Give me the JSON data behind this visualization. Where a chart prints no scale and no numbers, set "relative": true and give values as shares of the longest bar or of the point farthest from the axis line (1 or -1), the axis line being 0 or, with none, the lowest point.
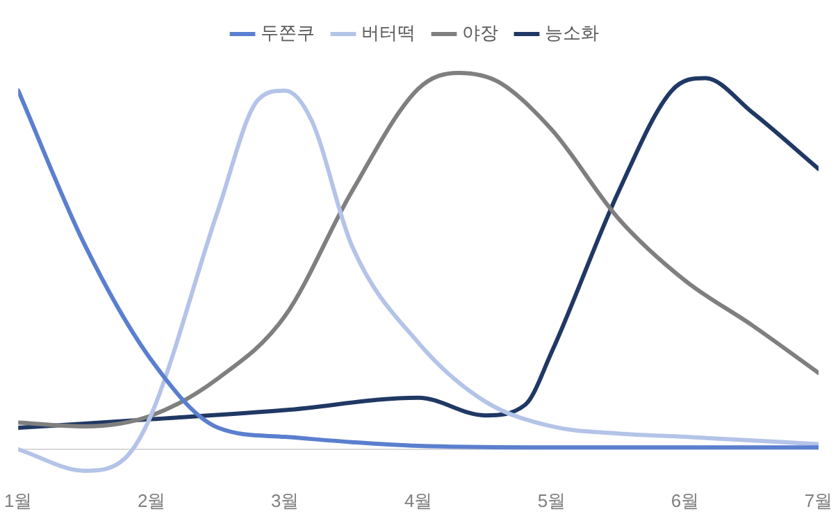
{
  "chart_data": {
    "type": "line",
    "relative": true,
    "xlim": [
      1,
      7
    ],
    "xticks": [
      {
        "value": 1,
        "label": "1월"
      },
      {
        "value": 2,
        "label": "2월"
      },
      {
        "value": 3,
        "label": "3월"
      },
      {
        "value": 4,
        "label": "4월"
      },
      {
        "value": 5,
        "label": "5월"
      },
      {
        "value": 6,
        "label": "6월"
      },
      {
        "value": 7,
        "label": "7월"
      }
    ],
    "legend": "top",
    "grid": false,
    "marker": "none",
    "line_style": "solid",
    "series": [
      {
        "name": "두쫀쿠",
        "color": "#5b7fcf",
        "x": [
          1,
          1.5,
          2,
          2.5,
          3,
          3.5,
          4,
          5,
          6,
          7
        ],
        "values": [
          0.953,
          0.542,
          0.236,
          0.057,
          0.033,
          0.019,
          0.009,
          0.005,
          0.005,
          0.005
        ]
      },
      {
        "name": "버터떡",
        "color": "#b4c3e8",
        "x": [
          1,
          1.5,
          1.8,
          2,
          2.5,
          2.8,
          3,
          3.2,
          3.5,
          4,
          4.5,
          5,
          5.5,
          6,
          7
        ],
        "values": [
          0,
          -0.057,
          -0.024,
          0.094,
          0.637,
          0.929,
          0.953,
          0.873,
          0.542,
          0.283,
          0.127,
          0.061,
          0.042,
          0.033,
          0.014
        ]
      },
      {
        "name": "야장",
        "color": "#7f7f7f",
        "x": [
          1,
          1.5,
          2,
          2.5,
          3,
          3.5,
          4,
          4.3,
          4.6,
          5,
          5.5,
          6,
          6.5,
          7
        ],
        "values": [
          0.071,
          0.061,
          0.09,
          0.189,
          0.354,
          0.684,
          0.958,
          1,
          0.976,
          0.849,
          0.613,
          0.448,
          0.33,
          0.203
        ]
      },
      {
        "name": "능소화",
        "color": "#203864",
        "x": [
          1,
          2,
          3,
          4,
          4.5,
          4.8,
          5,
          5.5,
          5.9,
          6.15,
          6.5,
          7
        ],
        "values": [
          0.057,
          0.08,
          0.104,
          0.137,
          0.09,
          0.118,
          0.259,
          0.684,
          0.953,
          0.986,
          0.896,
          0.745
        ]
      }
    ]
  }
}
